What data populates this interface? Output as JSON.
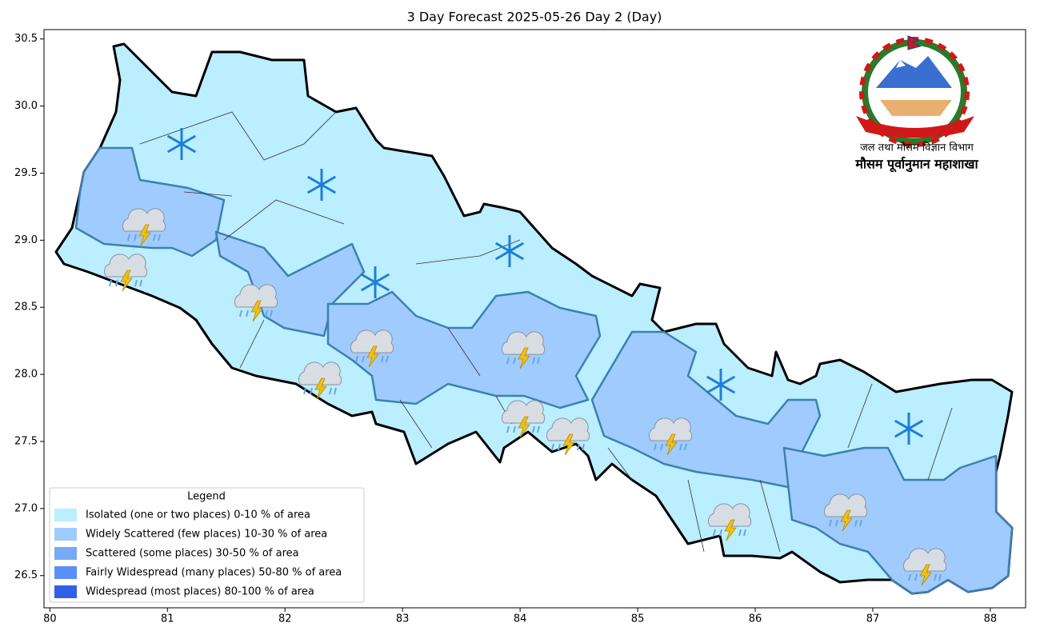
{
  "chart_data": {
    "type": "map",
    "title": "3 Day Forecast 2025-05-26 Day 2 (Day)",
    "xlim": [
      79.95,
      88.3
    ],
    "ylim": [
      26.26,
      30.57
    ],
    "xticks": [
      80,
      81,
      82,
      83,
      84,
      85,
      86,
      87,
      88
    ],
    "yticks": [
      26.5,
      {
        "value": 27,
        "label": "27.0"
      },
      27.5,
      {
        "value": 28,
        "label": "28.0"
      },
      28.5,
      {
        "value": 29,
        "label": "29.0"
      },
      29.5,
      {
        "value": 30,
        "label": "30.0"
      },
      30.5
    ],
    "legend": {
      "title": "Legend",
      "entries": [
        {
          "name": "Isolated (one or two places)  0-10 % of area",
          "color": "#bbeeff"
        },
        {
          "name": "Widely Scattered (few places) 10-30 % of area",
          "color": "#9fcbff"
        },
        {
          "name": "Scattered (some places) 30-50  % of area",
          "color": "#78a9f7"
        },
        {
          "name": "Fairly Widespread (many places) 50-80 % of area",
          "color": "#5b8ff9"
        },
        {
          "name": "Widespread (most places) 80-100 % of area",
          "color": "#3060e6"
        }
      ]
    },
    "agency": "जल तथा मौसम विज्ञान विभाग",
    "division": "मौसम पूर्वानुमान महाशाखा"
  }
}
